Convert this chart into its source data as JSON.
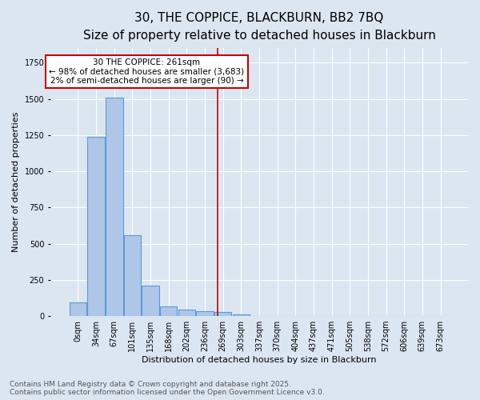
{
  "title": "30, THE COPPICE, BLACKBURN, BB2 7BQ",
  "subtitle": "Size of property relative to detached houses in Blackburn",
  "xlabel": "Distribution of detached houses by size in Blackburn",
  "ylabel": "Number of detached properties",
  "bar_labels": [
    "0sqm",
    "34sqm",
    "67sqm",
    "101sqm",
    "135sqm",
    "168sqm",
    "202sqm",
    "236sqm",
    "269sqm",
    "303sqm",
    "337sqm",
    "370sqm",
    "404sqm",
    "437sqm",
    "471sqm",
    "505sqm",
    "538sqm",
    "572sqm",
    "606sqm",
    "639sqm",
    "673sqm"
  ],
  "bar_values": [
    95,
    1240,
    1510,
    560,
    210,
    65,
    45,
    35,
    27,
    10,
    0,
    0,
    0,
    0,
    0,
    0,
    0,
    0,
    0,
    0,
    0
  ],
  "bar_color": "#aec6e8",
  "bar_edgecolor": "#5b9bd5",
  "background_color": "#dce6f1",
  "grid_color": "#ffffff",
  "vline_x": 7.72,
  "vline_color": "#cc0000",
  "annotation_text": "30 THE COPPICE: 261sqm\n← 98% of detached houses are smaller (3,683)\n2% of semi-detached houses are larger (90) →",
  "annotation_box_color": "#ffffff",
  "annotation_box_edgecolor": "#cc0000",
  "ylim": [
    0,
    1850
  ],
  "footnote": "Contains HM Land Registry data © Crown copyright and database right 2025.\nContains public sector information licensed under the Open Government Licence v3.0.",
  "title_fontsize": 11,
  "subtitle_fontsize": 9,
  "xlabel_fontsize": 8,
  "ylabel_fontsize": 8,
  "tick_fontsize": 7,
  "annotation_fontsize": 7.5,
  "footnote_fontsize": 6.5
}
